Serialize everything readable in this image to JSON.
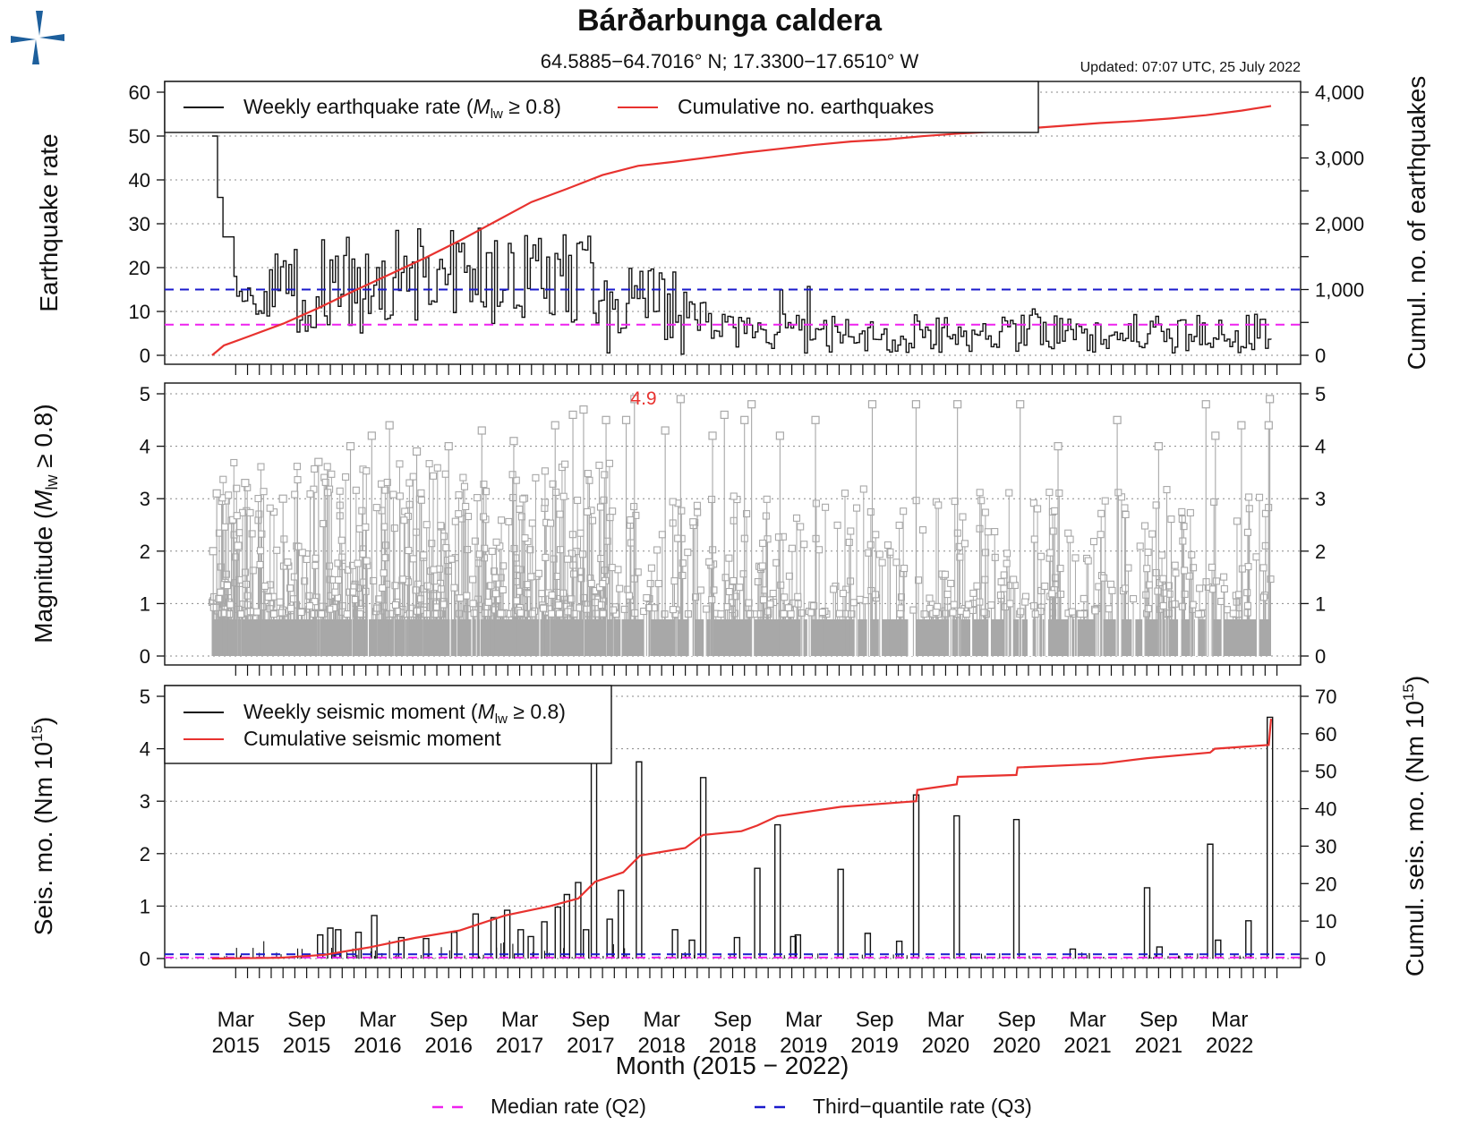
{
  "header": {
    "title": "Bárðarbunga caldera",
    "coords": "64.5885−64.7016° N; 17.3300−17.6510° W",
    "updated": "Updated: 07:07 UTC, 25 July 2022",
    "logo_name": "imo-logo"
  },
  "colors": {
    "weekly": "#111111",
    "cumulative": "#e8322f",
    "median": "#ee22ee",
    "q3": "#1a1acc",
    "magnitude": "#a8a8a8",
    "logo": "#1d5f9c",
    "grid": "#888888"
  },
  "panels": {
    "rate": {
      "ylabel": "Earthquake rate",
      "ylabel_right": "Cumul. no. of earthquakes",
      "legend_weekly_pre": "Weekly earthquake rate (",
      "legend_weekly_m": "M",
      "legend_weekly_sub": "lw",
      "legend_weekly_post": " ≥ 0.8)",
      "legend_cumul": "Cumulative no. earthquakes"
    },
    "mag": {
      "ylabel_pre": "Magnitude (",
      "ylabel_m": "M",
      "ylabel_sub": "lw",
      "ylabel_post": " ≥ 0.8)",
      "max_label": "4.9"
    },
    "moment": {
      "ylabel_pre": "Seis. mo. (Nm 10",
      "ylabel_sup": "15",
      "ylabel_post": ")",
      "ylabel_right_pre": "Cumul. seis. mo. (Nm 10",
      "ylabel_right_sup": "15",
      "ylabel_right_post": ")",
      "legend_weekly_pre": "Weekly seismic moment (",
      "legend_weekly_m": "M",
      "legend_weekly_sub": "lw",
      "legend_weekly_post": " ≥ 0.8)",
      "legend_cumul": "Cumulative seismic moment"
    }
  },
  "xaxis": {
    "title": "Month (2015 − 2022)",
    "ticks": [
      {
        "m": "Mar",
        "y": "2015"
      },
      {
        "m": "Sep",
        "y": "2015"
      },
      {
        "m": "Mar",
        "y": "2016"
      },
      {
        "m": "Sep",
        "y": "2016"
      },
      {
        "m": "Mar",
        "y": "2017"
      },
      {
        "m": "Sep",
        "y": "2017"
      },
      {
        "m": "Mar",
        "y": "2018"
      },
      {
        "m": "Sep",
        "y": "2018"
      },
      {
        "m": "Mar",
        "y": "2019"
      },
      {
        "m": "Sep",
        "y": "2019"
      },
      {
        "m": "Mar",
        "y": "2020"
      },
      {
        "m": "Sep",
        "y": "2020"
      },
      {
        "m": "Mar",
        "y": "2021"
      },
      {
        "m": "Sep",
        "y": "2021"
      },
      {
        "m": "Mar",
        "y": "2022"
      }
    ]
  },
  "footer_legend": {
    "median": "Median rate (Q2)",
    "q3": "Third−quantile rate (Q3)"
  },
  "chart_data": [
    {
      "type": "line",
      "panel": "rate",
      "x_unit": "months since Jan 2015",
      "xlim": [
        -4,
        92
      ],
      "ylim": [
        0,
        60
      ],
      "y2lim": [
        0,
        4000
      ],
      "yticks": [
        0,
        10,
        20,
        30,
        40,
        50,
        60
      ],
      "y2ticks": [
        "0",
        "1,000",
        "2,000",
        "3,000",
        "4,000"
      ],
      "y2tick_values": [
        0,
        1000,
        2000,
        3000,
        4000
      ],
      "median_rate": 7,
      "q3_rate": 15,
      "cumulative_total": 3810,
      "cumulative_points": [
        [
          0.0,
          0
        ],
        [
          1.0,
          150
        ],
        [
          3.0,
          280
        ],
        [
          6.0,
          480
        ],
        [
          9.0,
          720
        ],
        [
          12.0,
          980
        ],
        [
          15.0,
          1230
        ],
        [
          18.0,
          1480
        ],
        [
          21.0,
          1750
        ],
        [
          24.0,
          2040
        ],
        [
          27.0,
          2330
        ],
        [
          30.0,
          2530
        ],
        [
          33.0,
          2740
        ],
        [
          36.0,
          2880
        ],
        [
          39.0,
          2940
        ],
        [
          42.0,
          3010
        ],
        [
          45.0,
          3080
        ],
        [
          48.0,
          3140
        ],
        [
          51.0,
          3200
        ],
        [
          54.0,
          3250
        ],
        [
          57.0,
          3280
        ],
        [
          60.0,
          3330
        ],
        [
          63.0,
          3370
        ],
        [
          66.0,
          3400
        ],
        [
          69.0,
          3450
        ],
        [
          72.0,
          3490
        ],
        [
          75.0,
          3530
        ],
        [
          78.0,
          3560
        ],
        [
          81.0,
          3600
        ],
        [
          84.0,
          3650
        ],
        [
          87.0,
          3720
        ],
        [
          89.5,
          3790
        ]
      ]
    },
    {
      "type": "scatter",
      "panel": "magnitude",
      "xlim": [
        -4,
        92
      ],
      "ylim": [
        0,
        5
      ],
      "yticks": [
        0,
        1,
        2,
        3,
        4,
        5
      ],
      "max_magnitude": 4.9,
      "largest_events": [
        [
          0.1,
          2.0
        ],
        [
          0.4,
          3.1
        ],
        [
          2.2,
          2.1
        ],
        [
          2.8,
          3.3
        ],
        [
          6.0,
          3.0
        ],
        [
          9.0,
          3.7
        ],
        [
          11.7,
          4.0
        ],
        [
          13.5,
          4.2
        ],
        [
          15.0,
          4.4
        ],
        [
          17.3,
          3.9
        ],
        [
          20.0,
          4.0
        ],
        [
          22.8,
          4.3
        ],
        [
          25.5,
          4.1
        ],
        [
          29.0,
          4.4
        ],
        [
          30.5,
          4.6
        ],
        [
          31.4,
          4.7
        ],
        [
          33.3,
          4.5
        ],
        [
          35.0,
          4.5
        ],
        [
          35.7,
          4.9
        ],
        [
          38.3,
          4.3
        ],
        [
          39.6,
          4.9
        ],
        [
          42.3,
          4.2
        ],
        [
          43.3,
          4.6
        ],
        [
          45.0,
          4.5
        ],
        [
          45.6,
          4.8
        ],
        [
          48.0,
          4.2
        ],
        [
          51.0,
          4.5
        ],
        [
          55.8,
          4.8
        ],
        [
          59.5,
          4.8
        ],
        [
          63.0,
          4.8
        ],
        [
          68.3,
          4.8
        ],
        [
          71.5,
          4.0
        ],
        [
          76.5,
          4.5
        ],
        [
          80.0,
          4.0
        ],
        [
          84.0,
          4.8
        ],
        [
          84.8,
          4.2
        ],
        [
          87.0,
          4.4
        ],
        [
          89.4,
          4.9
        ],
        [
          89.3,
          4.4
        ]
      ]
    },
    {
      "type": "line",
      "panel": "moment",
      "xlim": [
        -4,
        92
      ],
      "ylim": [
        0,
        5
      ],
      "yticks": [
        0,
        1,
        2,
        3,
        4,
        5
      ],
      "y2lim": [
        0,
        70
      ],
      "y2ticks": [
        0,
        10,
        20,
        30,
        40,
        50,
        60,
        70
      ],
      "median_rate": 0.02,
      "q3_rate": 0.08,
      "weekly_spikes": [
        [
          9.6,
          0.45
        ],
        [
          10.5,
          0.58
        ],
        [
          11.2,
          0.55
        ],
        [
          13.0,
          0.5
        ],
        [
          14.4,
          0.82
        ],
        [
          16.8,
          0.4
        ],
        [
          19.0,
          0.38
        ],
        [
          21.5,
          0.5
        ],
        [
          23.4,
          0.85
        ],
        [
          25.0,
          0.78
        ],
        [
          26.2,
          0.92
        ],
        [
          27.4,
          0.55
        ],
        [
          28.3,
          0.42
        ],
        [
          29.5,
          0.7
        ],
        [
          30.7,
          0.98
        ],
        [
          31.5,
          1.22
        ],
        [
          32.5,
          1.45
        ],
        [
          33.2,
          0.55
        ],
        [
          33.9,
          3.8
        ],
        [
          35.3,
          0.75
        ],
        [
          36.3,
          1.3
        ],
        [
          37.9,
          3.75
        ],
        [
          41.1,
          0.55
        ],
        [
          42.6,
          0.35
        ],
        [
          43.6,
          3.45
        ],
        [
          46.6,
          0.4
        ],
        [
          48.4,
          1.72
        ],
        [
          50.2,
          2.55
        ],
        [
          51.6,
          0.42
        ],
        [
          52.0,
          0.45
        ],
        [
          55.8,
          1.7
        ],
        [
          58.2,
          0.48
        ],
        [
          61.0,
          0.33
        ],
        [
          62.5,
          3.12
        ],
        [
          66.1,
          2.72
        ],
        [
          71.4,
          2.65
        ],
        [
          76.4,
          0.18
        ],
        [
          83.0,
          1.35
        ],
        [
          84.1,
          0.22
        ],
        [
          88.6,
          2.18
        ],
        [
          89.3,
          0.35
        ],
        [
          92.0,
          0.72
        ],
        [
          93.9,
          4.6
        ]
      ],
      "cumulative_points": [
        [
          0.0,
          0.0
        ],
        [
          6.0,
          0.2
        ],
        [
          10.0,
          1.0
        ],
        [
          14.0,
          3.0
        ],
        [
          18.0,
          5.5
        ],
        [
          22.0,
          7.5
        ],
        [
          26.0,
          11.5
        ],
        [
          30.0,
          14.0
        ],
        [
          32.5,
          16.0
        ],
        [
          34.0,
          20.5
        ],
        [
          36.5,
          23.0
        ],
        [
          38.0,
          27.5
        ],
        [
          42.0,
          29.5
        ],
        [
          43.6,
          33.0
        ],
        [
          47.0,
          34.0
        ],
        [
          48.4,
          35.5
        ],
        [
          50.2,
          38.0
        ],
        [
          55.8,
          40.5
        ],
        [
          62.5,
          42.0
        ],
        [
          62.6,
          45.0
        ],
        [
          66.1,
          46.5
        ],
        [
          66.2,
          48.5
        ],
        [
          71.4,
          49.0
        ],
        [
          71.5,
          51.0
        ],
        [
          79.0,
          52.0
        ],
        [
          83.0,
          53.5
        ],
        [
          88.6,
          55.0
        ],
        [
          89.0,
          56.0
        ],
        [
          93.8,
          57.0
        ],
        [
          94.0,
          64.0
        ]
      ]
    }
  ]
}
